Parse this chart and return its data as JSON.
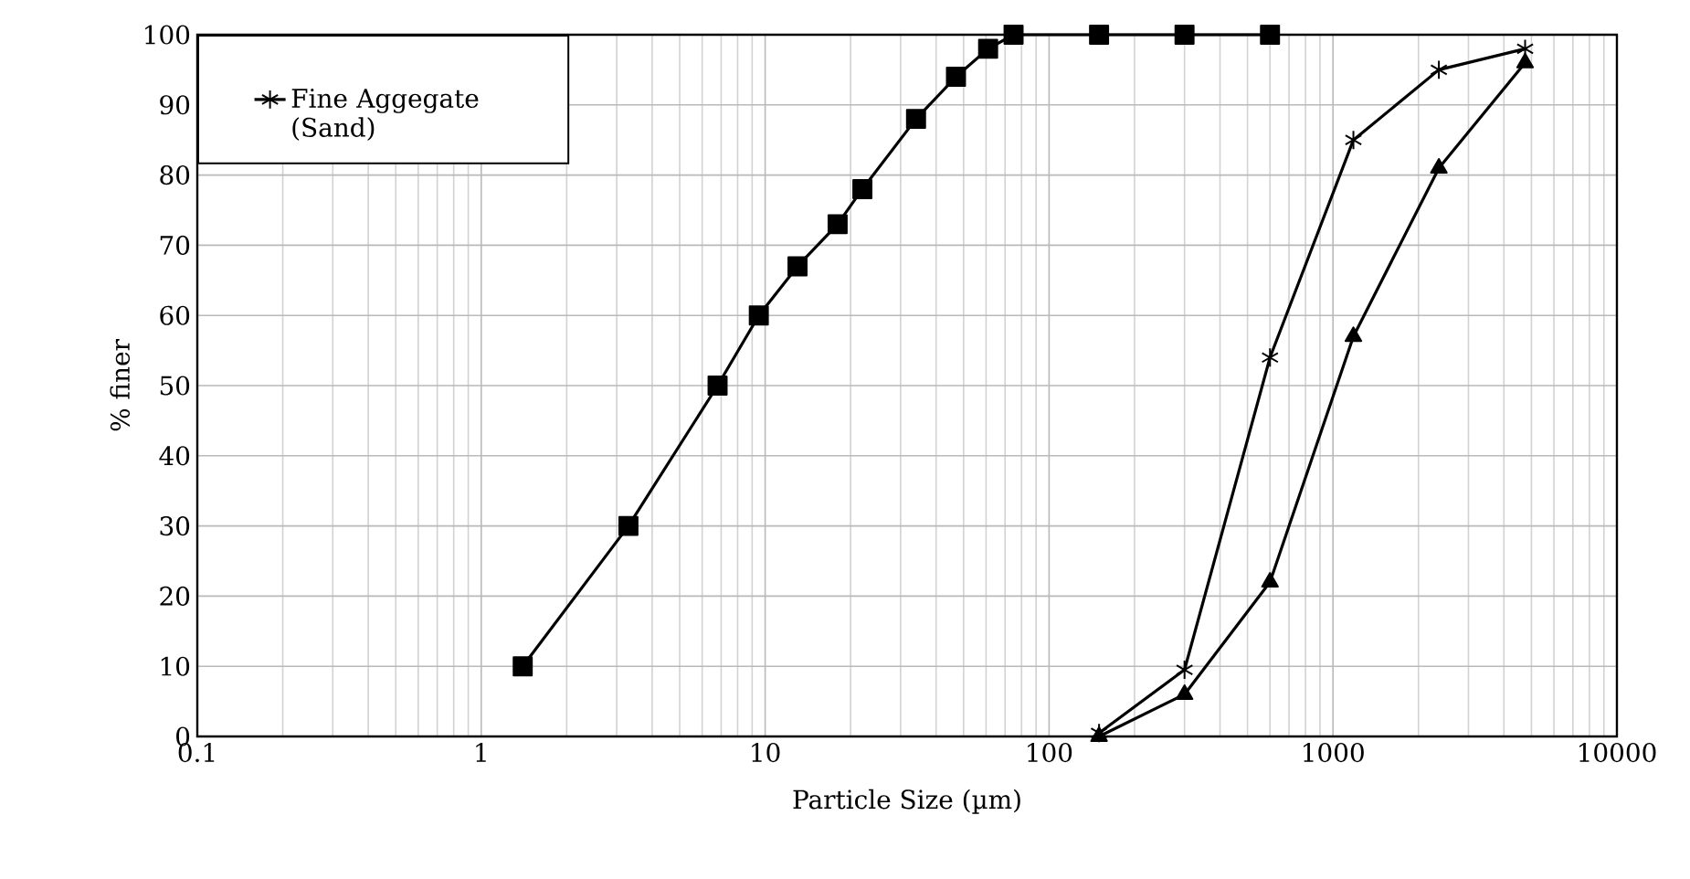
{
  "chart_data": {
    "type": "line",
    "xlabel": "Particle Size (µm)",
    "ylabel": "% finer",
    "log": "x",
    "grid": true,
    "legend": "top left",
    "xlim": [
      0.1,
      10000
    ],
    "xticks": [
      0.1,
      1,
      10,
      100,
      1000,
      10000
    ],
    "ylim": [
      0,
      100
    ],
    "yticks": [
      0,
      10,
      20,
      30,
      40,
      50,
      60,
      70,
      80,
      90,
      100
    ],
    "series": [
      {
        "color": "#000000",
        "marker": "square",
        "x": [
          1.4,
          3.3,
          6.8,
          9.5,
          13,
          18,
          22,
          34,
          47,
          61,
          75,
          150,
          300,
          600
        ],
        "values": [
          10,
          30,
          50,
          60,
          67,
          73,
          78,
          88,
          94,
          98,
          100,
          100,
          100,
          100
        ]
      },
      {
        "name": "Fine Aggegate (Sand)",
        "color": "#000000",
        "marker": "cross",
        "x": [
          150,
          300,
          600,
          1180,
          2360,
          4750
        ],
        "values": [
          0.5,
          9.5,
          54,
          85,
          95,
          98
        ]
      },
      {
        "color": "#000000",
        "marker": "triangle",
        "x": [
          150,
          300,
          600,
          1180,
          2360,
          4750
        ],
        "values": [
          0,
          6,
          22,
          57,
          81,
          96
        ]
      }
    ]
  }
}
